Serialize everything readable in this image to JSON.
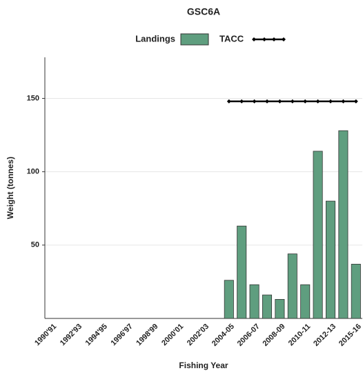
{
  "chart_data": {
    "type": "bar",
    "title": "GSC6A",
    "x_label": "Fishing Year",
    "y_label": "Weight (tonnes)",
    "categories": [
      "1990'91",
      null,
      "1992'93",
      null,
      "1994'95",
      null,
      "1996'97",
      null,
      "1998'99",
      null,
      "2000'01",
      null,
      "2002'03",
      null,
      "2004-05",
      null,
      "2006-07",
      null,
      "2008-09",
      null,
      "2010-11",
      null,
      "2012-13",
      null,
      "2015-16"
    ],
    "series": [
      {
        "name": "Landings",
        "type": "bar",
        "color": "#5f9e7f",
        "values": [
          null,
          null,
          null,
          null,
          null,
          null,
          null,
          null,
          null,
          null,
          null,
          null,
          null,
          null,
          26,
          63,
          23,
          16,
          13,
          44,
          23,
          114,
          80,
          128,
          37
        ]
      },
      {
        "name": "TACC",
        "type": "line",
        "color": "#000000",
        "values": [
          null,
          null,
          null,
          null,
          null,
          null,
          null,
          null,
          null,
          null,
          null,
          null,
          null,
          null,
          148,
          148,
          148,
          148,
          148,
          148,
          148,
          148,
          148,
          148,
          148
        ]
      }
    ],
    "ylim": [
      0,
      178
    ],
    "yticks": [
      50,
      100,
      150
    ],
    "grid": true
  }
}
